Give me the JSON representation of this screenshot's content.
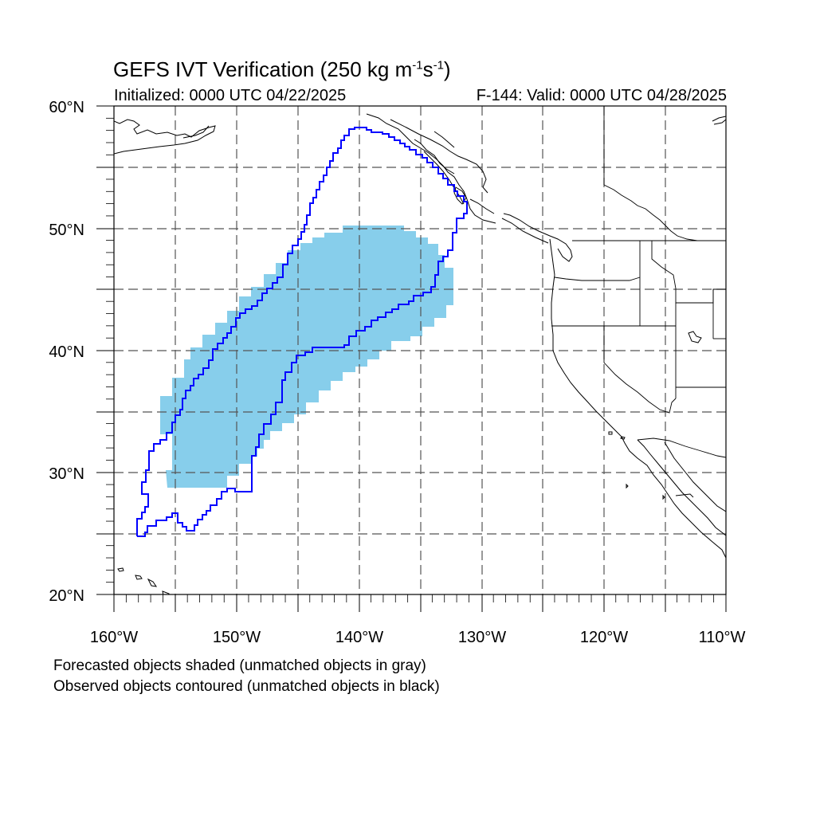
{
  "title": {
    "main": "GEFS IVT Verification (250 kg m",
    "sup1": "-1",
    "mid": "s",
    "sup2": "-1",
    "end": ")"
  },
  "initialized": "Initialized: 0000 UTC 04/22/2025",
  "valid": "F-144: Valid: 0000 UTC 04/28/2025",
  "notes": [
    "Forecasted objects shaded (unmatched objects in gray)",
    "Observed objects contoured (unmatched objects in black)"
  ],
  "map": {
    "lon_range": [
      -160,
      -110
    ],
    "lat_range": [
      20,
      60
    ],
    "lon_labels": [
      "160°W",
      "150°W",
      "140°W",
      "130°W",
      "120°W",
      "110°W"
    ],
    "lat_labels": [
      "20°N",
      "30°N",
      "40°N",
      "50°N",
      "60°N"
    ],
    "grid": "dashed, every 5°",
    "forecast_fill_color": "#87ceeb",
    "observed_contour_color": "#0000ff",
    "coastline_color": "#000000"
  }
}
